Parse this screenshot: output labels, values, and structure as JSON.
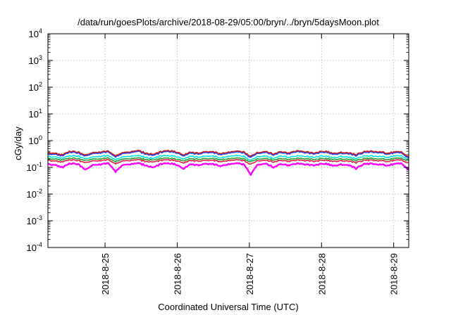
{
  "chart_data": {
    "type": "line",
    "title": "/data/run/goesPlots/archive/2018-08-29/05:00/bryn/../bryn/5daysMoon.plot",
    "xlabel": "Coordinated Universal Time (UTC)",
    "ylabel": "cGy/day",
    "y_scale": "log",
    "ylim": [
      0.0001,
      10000
    ],
    "y_ticks": [
      {
        "value": 10000,
        "base": "10",
        "exp": "4"
      },
      {
        "value": 1000,
        "base": "10",
        "exp": "3"
      },
      {
        "value": 100,
        "base": "10",
        "exp": "2"
      },
      {
        "value": 10,
        "base": "10",
        "exp": "1"
      },
      {
        "value": 1,
        "base": "10",
        "exp": "0"
      },
      {
        "value": 0.1,
        "base": "10",
        "exp": "-1"
      },
      {
        "value": 0.01,
        "base": "10",
        "exp": "-2"
      },
      {
        "value": 0.001,
        "base": "10",
        "exp": "-3"
      },
      {
        "value": 0.0001,
        "base": "10",
        "exp": "-4"
      }
    ],
    "x_range": [
      "2018-08-24 05:00",
      "2018-08-29 05:00"
    ],
    "x_ticks": [
      "2018-8-25",
      "2018-8-26",
      "2018-8-27",
      "2018-8-28",
      "2018-8-29"
    ],
    "grid": true,
    "legend": "none",
    "series": [
      {
        "color": "#ff00ff",
        "baseline": 0.13,
        "values": [
          0.13,
          0.12,
          0.1,
          0.14,
          0.13,
          0.08,
          0.12,
          0.13,
          0.14,
          0.07,
          0.12,
          0.13,
          0.14,
          0.12,
          0.1,
          0.13,
          0.14,
          0.13,
          0.09,
          0.13,
          0.12,
          0.14,
          0.13,
          0.11,
          0.13,
          0.14,
          0.13,
          0.05,
          0.13,
          0.14,
          0.1,
          0.13,
          0.12,
          0.14,
          0.13,
          0.12,
          0.13,
          0.14,
          0.11,
          0.13,
          0.12,
          0.09,
          0.13,
          0.14,
          0.13,
          0.12,
          0.13,
          0.14,
          0.08
        ]
      },
      {
        "color": "#e6194b",
        "baseline": 0.18,
        "values": [
          0.18,
          0.17,
          0.16,
          0.19,
          0.18,
          0.15,
          0.17,
          0.18,
          0.19,
          0.14,
          0.17,
          0.18,
          0.19,
          0.17,
          0.16,
          0.18,
          0.19,
          0.18,
          0.15,
          0.18,
          0.17,
          0.19,
          0.18,
          0.16,
          0.18,
          0.19,
          0.18,
          0.13,
          0.18,
          0.19,
          0.16,
          0.18,
          0.17,
          0.19,
          0.18,
          0.17,
          0.18,
          0.19,
          0.16,
          0.18,
          0.17,
          0.15,
          0.18,
          0.19,
          0.18,
          0.17,
          0.18,
          0.19,
          0.14
        ]
      },
      {
        "color": "#2ca02c",
        "baseline": 0.21,
        "values": [
          0.21,
          0.2,
          0.19,
          0.22,
          0.21,
          0.18,
          0.2,
          0.21,
          0.22,
          0.17,
          0.2,
          0.21,
          0.22,
          0.2,
          0.19,
          0.21,
          0.22,
          0.21,
          0.18,
          0.21,
          0.2,
          0.22,
          0.21,
          0.19,
          0.21,
          0.22,
          0.21,
          0.16,
          0.21,
          0.22,
          0.19,
          0.21,
          0.2,
          0.22,
          0.21,
          0.2,
          0.21,
          0.22,
          0.19,
          0.21,
          0.2,
          0.18,
          0.21,
          0.22,
          0.21,
          0.2,
          0.21,
          0.22,
          0.17
        ]
      },
      {
        "color": "#00e5e5",
        "baseline": 0.25,
        "values": [
          0.25,
          0.24,
          0.22,
          0.27,
          0.26,
          0.21,
          0.24,
          0.26,
          0.27,
          0.2,
          0.24,
          0.26,
          0.27,
          0.24,
          0.22,
          0.26,
          0.27,
          0.26,
          0.21,
          0.26,
          0.24,
          0.27,
          0.26,
          0.22,
          0.26,
          0.27,
          0.26,
          0.18,
          0.26,
          0.27,
          0.22,
          0.26,
          0.24,
          0.27,
          0.26,
          0.24,
          0.26,
          0.27,
          0.22,
          0.26,
          0.24,
          0.21,
          0.26,
          0.27,
          0.26,
          0.24,
          0.26,
          0.27,
          0.19
        ]
      },
      {
        "color": "#1f3fff",
        "baseline": 0.32,
        "values": [
          0.33,
          0.31,
          0.28,
          0.38,
          0.35,
          0.27,
          0.33,
          0.36,
          0.38,
          0.26,
          0.33,
          0.36,
          0.4,
          0.33,
          0.29,
          0.36,
          0.4,
          0.37,
          0.28,
          0.35,
          0.32,
          0.38,
          0.36,
          0.3,
          0.35,
          0.38,
          0.36,
          0.24,
          0.35,
          0.38,
          0.3,
          0.36,
          0.33,
          0.4,
          0.37,
          0.33,
          0.36,
          0.39,
          0.3,
          0.35,
          0.33,
          0.28,
          0.36,
          0.39,
          0.37,
          0.33,
          0.35,
          0.36,
          0.22
        ]
      },
      {
        "color": "#cc2222",
        "baseline": 0.34,
        "values": [
          0.35,
          0.33,
          0.3,
          0.4,
          0.37,
          0.29,
          0.35,
          0.38,
          0.4,
          0.28,
          0.35,
          0.38,
          0.42,
          0.35,
          0.31,
          0.38,
          0.42,
          0.39,
          0.3,
          0.37,
          0.34,
          0.4,
          0.38,
          0.32,
          0.37,
          0.4,
          0.38,
          0.26,
          0.37,
          0.4,
          0.32,
          0.38,
          0.35,
          0.42,
          0.39,
          0.35,
          0.38,
          0.41,
          0.32,
          0.37,
          0.35,
          0.3,
          0.38,
          0.41,
          0.39,
          0.35,
          0.37,
          0.38,
          0.24
        ]
      }
    ]
  }
}
